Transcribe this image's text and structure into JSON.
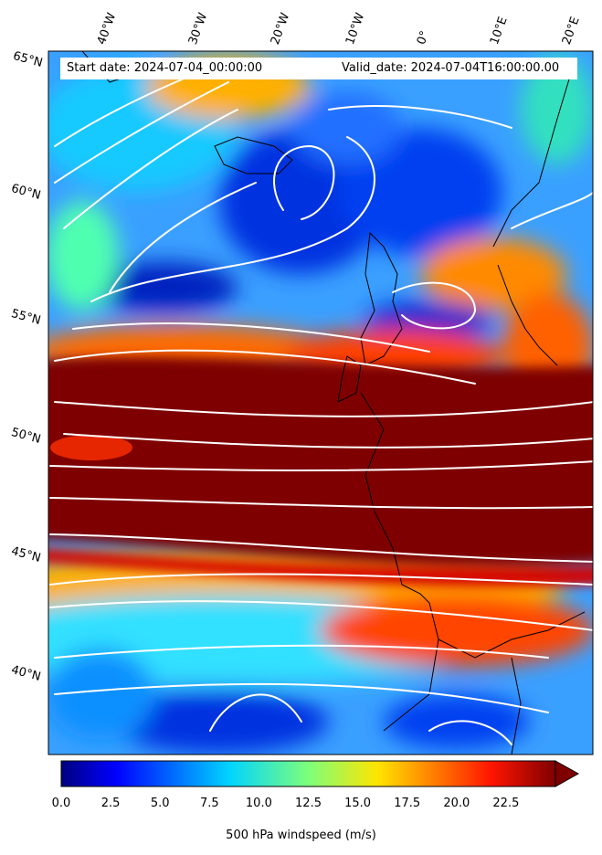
{
  "header": {
    "start_date": "Start date: 2024-07-04_00:00:00",
    "valid_date": "Valid_date: 2024-07-04T16:00:00.00"
  },
  "map": {
    "longitude_labels": [
      "40°W",
      "30°W",
      "20°W",
      "10°W",
      "0°",
      "10°E",
      "20°E"
    ],
    "latitude_labels": [
      "65°N",
      "60°N",
      "55°N",
      "50°N",
      "45°N",
      "40°N"
    ],
    "field": "500 hPa windspeed",
    "colormap": "jet",
    "streamline_color": "#ffffff",
    "coastline_color": "#000000"
  },
  "colorbar": {
    "label": "500 hPa windspeed (m/s)",
    "ticks": [
      "0.0",
      "2.5",
      "5.0",
      "7.5",
      "10.0",
      "12.5",
      "15.0",
      "17.5",
      "20.0",
      "22.5"
    ],
    "range": [
      0,
      25
    ],
    "extend": "max"
  }
}
